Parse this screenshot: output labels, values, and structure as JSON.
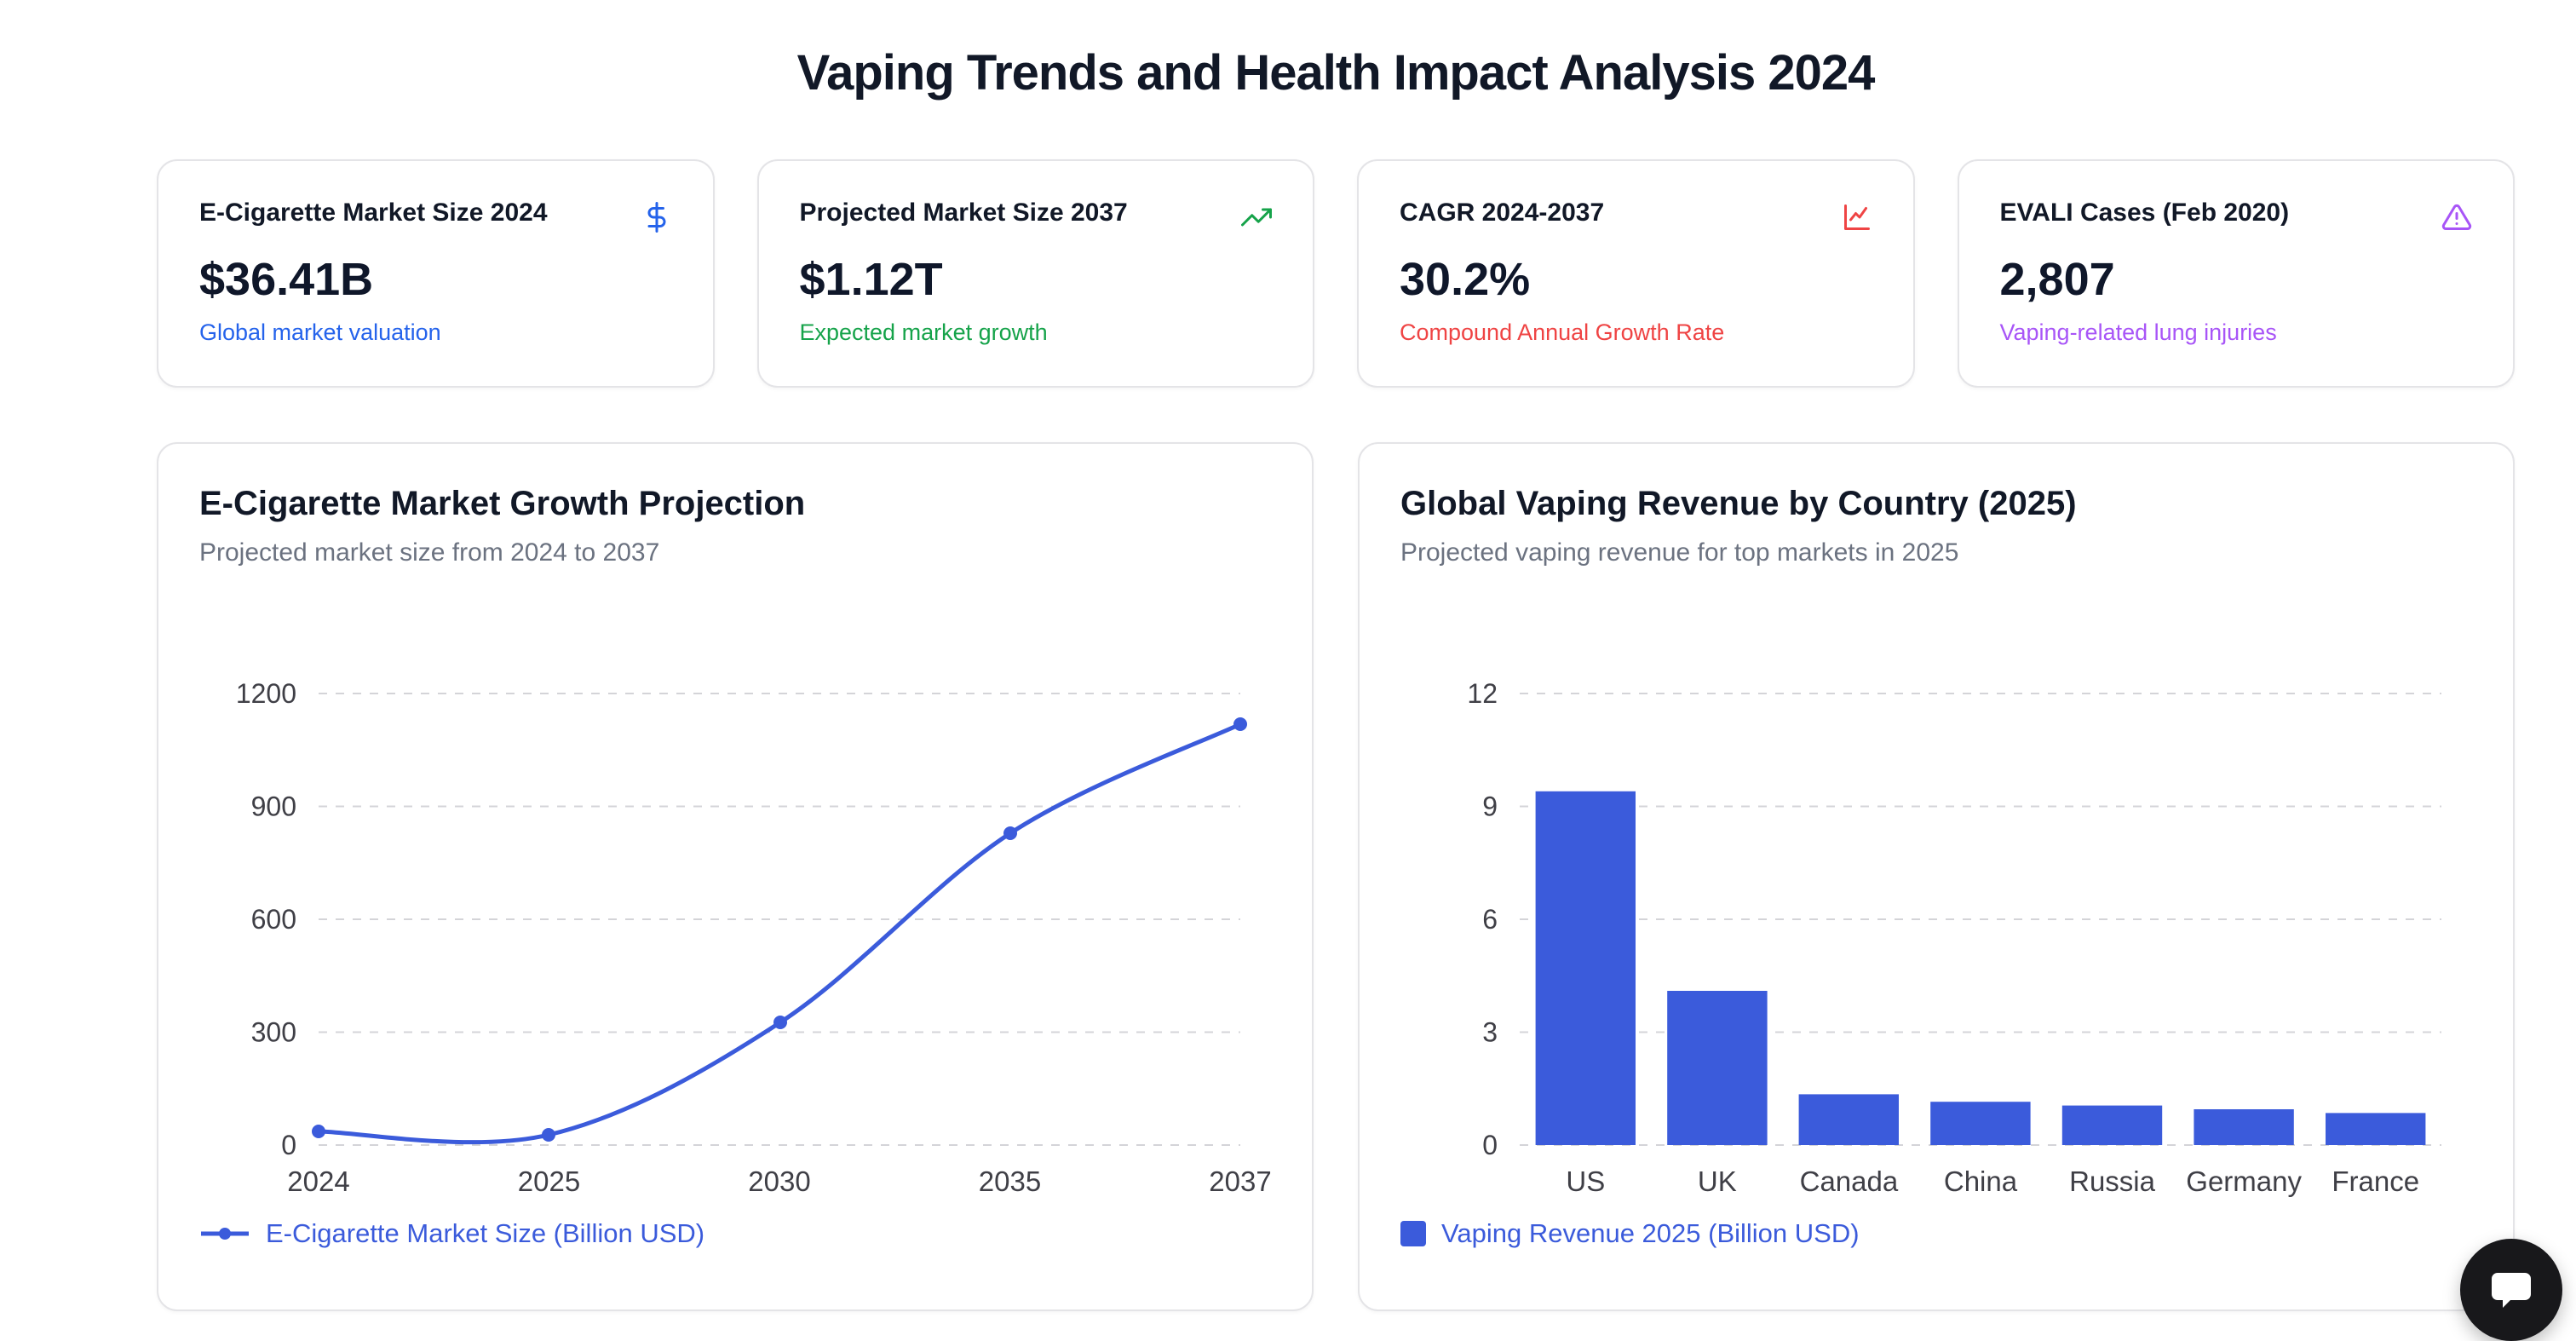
{
  "page": {
    "title": "Vaping Trends and Health Impact Analysis 2024"
  },
  "stats": [
    {
      "label": "E-Cigarette Market Size 2024",
      "value": "$36.41B",
      "subtitle": "Global market valuation",
      "icon": "dollar-icon",
      "color": "#2563eb"
    },
    {
      "label": "Projected Market Size 2037",
      "value": "$1.12T",
      "subtitle": "Expected market growth",
      "icon": "trending-up-icon",
      "color": "#16a34a"
    },
    {
      "label": "CAGR 2024-2037",
      "value": "30.2%",
      "subtitle": "Compound Annual Growth Rate",
      "icon": "line-chart-icon",
      "color": "#ef4444"
    },
    {
      "label": "EVALI Cases (Feb 2020)",
      "value": "2,807",
      "subtitle": "Vaping-related lung injuries",
      "icon": "warning-icon",
      "color": "#a855f7"
    }
  ],
  "chart_data": [
    {
      "type": "line",
      "title": "E-Cigarette Market Growth Projection",
      "subtitle": "Projected market size from 2024 to 2037",
      "categories": [
        "2024",
        "2025",
        "2030",
        "2035",
        "2037"
      ],
      "series": [
        {
          "name": "E-Cigarette Market Size (Billion USD)",
          "values": [
            36.41,
            25,
            325,
            830,
            1120
          ]
        }
      ],
      "xlabel": "",
      "ylabel": "",
      "ylim": [
        0,
        1200
      ],
      "yticks": [
        0,
        300,
        600,
        900,
        1200
      ],
      "grid": true,
      "legend_position": "bottom",
      "color": "#3b5bdb"
    },
    {
      "type": "bar",
      "title": "Global Vaping Revenue by Country (2025)",
      "subtitle": "Projected vaping revenue for top markets in 2025",
      "categories": [
        "US",
        "UK",
        "Canada",
        "China",
        "Russia",
        "Germany",
        "France"
      ],
      "series": [
        {
          "name": "Vaping Revenue 2025 (Billion USD)",
          "values": [
            9.4,
            4.1,
            1.35,
            1.15,
            1.05,
            0.95,
            0.85
          ]
        }
      ],
      "xlabel": "",
      "ylabel": "",
      "ylim": [
        0,
        12
      ],
      "yticks": [
        0,
        3,
        6,
        9,
        12
      ],
      "grid": true,
      "legend_position": "bottom",
      "color": "#3b5bdb"
    }
  ],
  "chart_style": {
    "grid_color": "#d4d4d8",
    "tick_color": "#3f3f46"
  },
  "chat_widget": {
    "icon": "chat-bubble-icon"
  }
}
